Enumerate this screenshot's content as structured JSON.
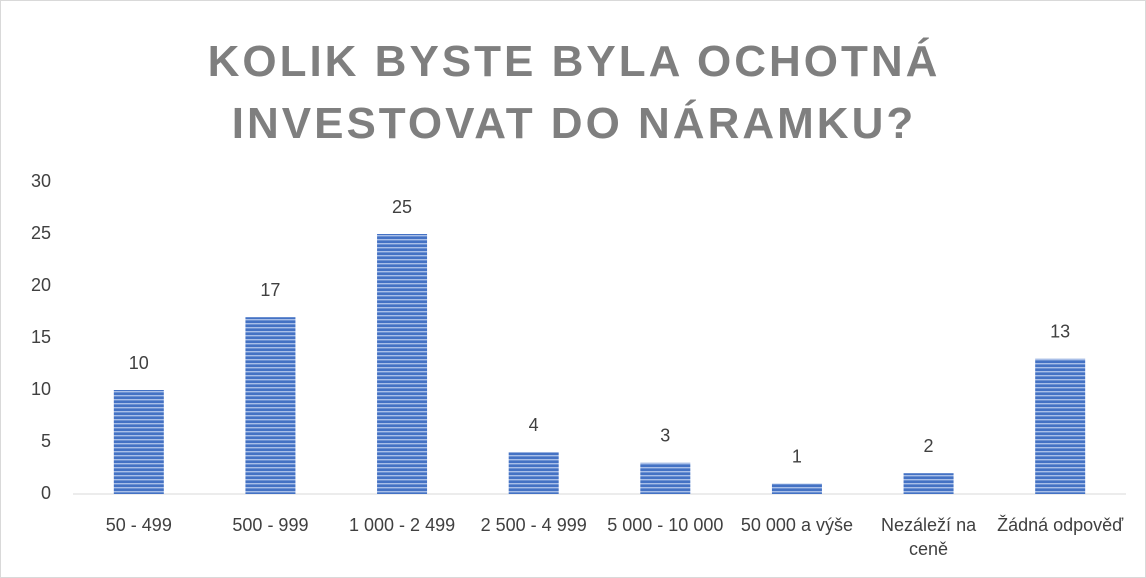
{
  "chart_data": {
    "type": "bar",
    "title": "KOLIK BYSTE BYLA OCHOTNÁ INVESTOVAT DO NÁRAMKU?",
    "categories": [
      "50 - 499",
      "500 - 999",
      "1 000 - 2 499",
      "2 500 - 4 999",
      "5 000 - 10 000",
      "50 000 a výše",
      "Nezáleží na ceně",
      "Žádná odpověď"
    ],
    "values": [
      10,
      17,
      25,
      4,
      3,
      1,
      2,
      13
    ],
    "color": "#4472c4",
    "ylim": [
      0,
      30
    ],
    "yticks": [
      0,
      5,
      10,
      15,
      20,
      25,
      30
    ],
    "grid": false
  }
}
